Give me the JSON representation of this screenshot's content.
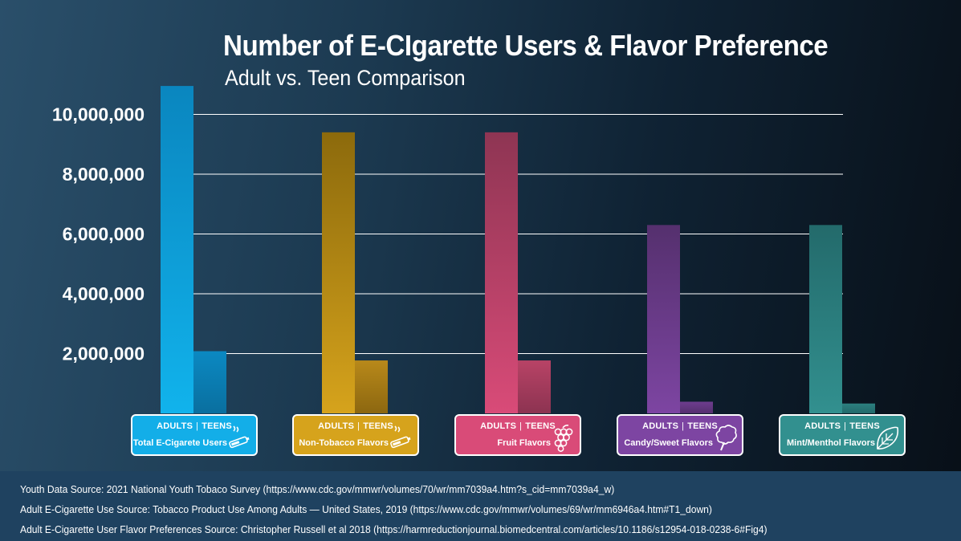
{
  "chart_data": {
    "type": "bar",
    "title": "Number of E-CIgarette Users & Flavor Preference",
    "subtitle": "Adult vs. Teen Comparison",
    "categories": [
      "Total E-Cigarete Users",
      "Non-Tobacco Flavors",
      "Fruit Flavors",
      "Candy/Sweet Flavors",
      "Mint/Menthol Flavors"
    ],
    "series": [
      {
        "name": "ADULTS",
        "values": [
          10950000,
          9400000,
          9400000,
          6300000,
          6300000
        ]
      },
      {
        "name": "TEENS",
        "values": [
          2080000,
          1770000,
          1770000,
          390000,
          330000
        ]
      }
    ],
    "yticks": [
      {
        "value": 2000000,
        "label": "2,000,000"
      },
      {
        "value": 4000000,
        "label": "4,000,000"
      },
      {
        "value": 6000000,
        "label": "6,000,000"
      },
      {
        "value": 8000000,
        "label": "8,000,000"
      },
      {
        "value": 10000000,
        "label": "10,000,000"
      }
    ],
    "ylim": [
      0,
      11000000
    ],
    "grid": true,
    "colors": [
      {
        "adult_top": "#0a86bf",
        "adult_bottom": "#11b3ec",
        "teen_top": "#0b89c2",
        "teen_bottom": "#0a6f9f",
        "badge": "#13aee8"
      },
      {
        "adult_top": "#8c6a0c",
        "adult_bottom": "#d6a31c",
        "teen_top": "#b8891a",
        "teen_bottom": "#8c6710",
        "badge": "#d6a31c"
      },
      {
        "adult_top": "#8e3553",
        "adult_bottom": "#d94b78",
        "teen_top": "#b84366",
        "teen_bottom": "#8c3351",
        "badge": "#d94b78"
      },
      {
        "adult_top": "#55306e",
        "adult_bottom": "#7d45a2",
        "teen_top": "#6e3d8f",
        "teen_bottom": "#55306e",
        "badge": "#7d45a2"
      },
      {
        "adult_top": "#236a6b",
        "adult_bottom": "#32908f",
        "teen_top": "#2c7f7f",
        "teen_bottom": "#236a6b",
        "badge": "#32908f"
      }
    ]
  },
  "badges": [
    {
      "adults": "ADULTS",
      "sep": "|",
      "teens": "TEENS",
      "label": "Total E-Cigarete Users",
      "icon": "vape-icon"
    },
    {
      "adults": "ADULTS",
      "sep": "|",
      "teens": "TEENS",
      "label": "Non-Tobacco Flavors",
      "icon": "vape-icon"
    },
    {
      "adults": "ADULTS",
      "sep": "|",
      "teens": "TEENS",
      "label": "Fruit Flavors",
      "icon": "grapes-icon"
    },
    {
      "adults": "ADULTS",
      "sep": "|",
      "teens": "TEENS",
      "label": "Candy/Sweet Flavors",
      "icon": "cotton-candy-icon"
    },
    {
      "adults": "ADULTS",
      "sep": "|",
      "teens": "TEENS",
      "label": "Mint/Menthol Flavors",
      "icon": "mint-leaf-icon"
    }
  ],
  "sources": [
    "Youth Data Source: 2021 National Youth Tobaco Survey (https://www.cdc.gov/mmwr/volumes/70/wr/mm7039a4.htm?s_cid=mm7039a4_w)",
    "Adult E-Cigarette Use Source: Tobacco Product Use Among Adults — United States, 2019 (https://www.cdc.gov/mmwr/volumes/69/wr/mm6946a4.htm#T1_down)",
    "Adult E-Cigarette User Flavor Preferences Source: Christopher Russell et al 2018 (https://harmreductionjournal.biomedcentral.com/articles/10.1186/s12954-018-0238-6#Fig4)"
  ]
}
